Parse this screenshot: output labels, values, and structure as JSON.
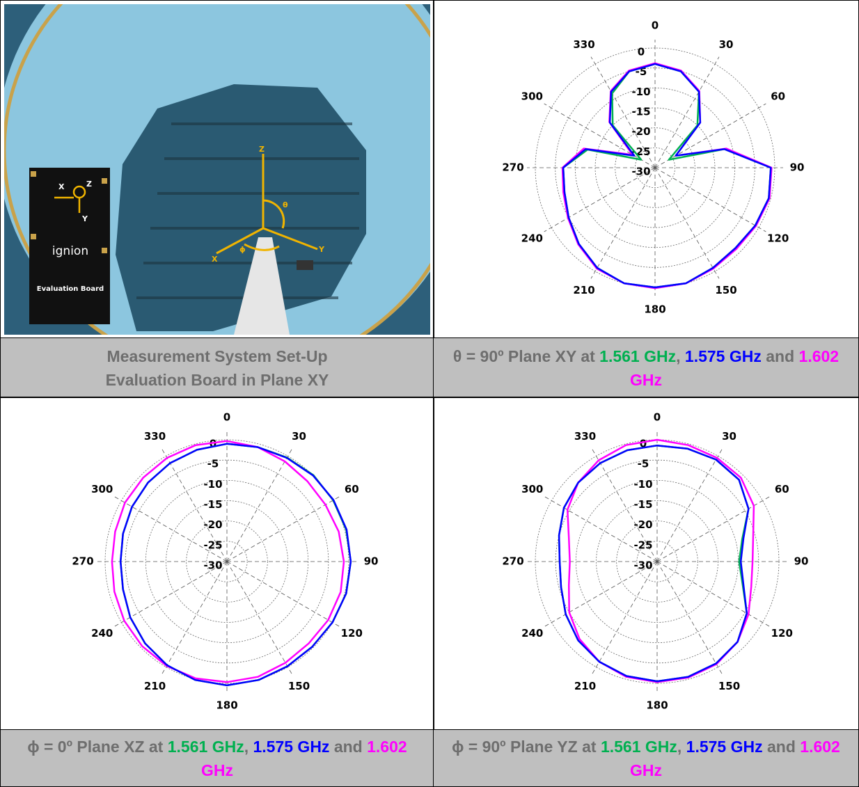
{
  "setup_caption": [
    "Measurement System Set-Up",
    "Evaluation Board in Plane XY"
  ],
  "photo": {
    "brand": "ignion",
    "board_title": "Evaluation Board",
    "board_axes": [
      "X",
      "Z",
      "Y"
    ],
    "chamber_axes": [
      "Z",
      "θ",
      "ϕ",
      "X",
      "Y"
    ]
  },
  "captions": [
    [
      {
        "text": "θ = 90º Plane XY at "
      },
      {
        "text": "1.561 GHz",
        "color": "#00b050"
      },
      {
        "text": ", "
      },
      {
        "text": "1.575 GHz",
        "color": "#0000ff"
      },
      {
        "text": " and "
      },
      {
        "text": "1.602 GHz",
        "color": "#ff00ff"
      }
    ],
    [
      {
        "text": "ϕ = 0º Plane XZ at "
      },
      {
        "text": "1.561 GHz",
        "color": "#00b050"
      },
      {
        "text": ", "
      },
      {
        "text": "1.575 GHz",
        "color": "#0000ff"
      },
      {
        "text": " and "
      },
      {
        "text": "1.602 GHz",
        "color": "#ff00ff"
      }
    ],
    [
      {
        "text": "ϕ = 90º Plane YZ at "
      },
      {
        "text": "1.561 GHz",
        "color": "#00b050"
      },
      {
        "text": ", "
      },
      {
        "text": "1.575 GHz",
        "color": "#0000ff"
      },
      {
        "text": " and "
      },
      {
        "text": "1.602 GHz",
        "color": "#ff00ff"
      }
    ]
  ],
  "chart_data": [
    {
      "type": "polar",
      "xlim": [
        0,
        360
      ],
      "xticks": [
        0,
        30,
        60,
        90,
        120,
        150,
        180,
        210,
        240,
        270,
        300,
        330
      ],
      "ylim": [
        -30,
        0
      ],
      "yticks": [
        0,
        -5,
        -10,
        -15,
        -20,
        -25,
        -30
      ],
      "grid": true,
      "x": [
        0,
        15,
        30,
        45,
        60,
        75,
        90,
        105,
        120,
        135,
        150,
        165,
        180,
        195,
        210,
        225,
        240,
        255,
        270,
        285,
        300,
        315,
        330,
        345
      ],
      "series": [
        {
          "color": "#00b050",
          "values": [
            -4,
            -5,
            -8,
            -15,
            -26,
            -12,
            -1,
            -0.5,
            -1,
            -1.5,
            -1,
            0,
            0,
            0,
            -1,
            -3,
            -5,
            -6.5,
            -7,
            -12.5,
            -26,
            -15,
            -8.5,
            -5
          ]
        },
        {
          "color": "#ff00ff",
          "values": [
            -3.8,
            -4.8,
            -7.8,
            -14,
            -24,
            -11.5,
            -0.8,
            -0.3,
            -0.8,
            -1.2,
            -0.8,
            0,
            0.2,
            0,
            -0.8,
            -2.8,
            -4.8,
            -6.2,
            -6.8,
            -11.5,
            -23.5,
            -13.8,
            -7.8,
            -4.8
          ]
        },
        {
          "color": "#0000ff",
          "values": [
            -4,
            -5,
            -8,
            -14,
            -24,
            -12,
            -1,
            -0.5,
            -1,
            -1.5,
            -1,
            0,
            0,
            0,
            -1,
            -3,
            -5,
            -6.5,
            -7,
            -12,
            -24,
            -14,
            -8,
            -5
          ]
        }
      ]
    },
    {
      "type": "polar",
      "xlim": [
        0,
        360
      ],
      "xticks": [
        0,
        30,
        60,
        90,
        120,
        150,
        180,
        210,
        240,
        270,
        300,
        330
      ],
      "ylim": [
        -30,
        0
      ],
      "yticks": [
        0,
        -5,
        -10,
        -15,
        -20,
        -25,
        -30
      ],
      "grid": true,
      "x": [
        0,
        15,
        30,
        45,
        60,
        75,
        90,
        105,
        120,
        135,
        150,
        165,
        180,
        195,
        210,
        225,
        240,
        255,
        270,
        285,
        300,
        315,
        330,
        345
      ],
      "series": [
        {
          "color": "#00b050",
          "values": [
            -1,
            -0.8,
            -0.4,
            0.1,
            0.2,
            0.4,
            0.5,
            0.4,
            0,
            -0.3,
            -0.2,
            0.2,
            0.5,
            0.2,
            -0.5,
            -1.5,
            -2.5,
            -3.5,
            -3.8,
            -3.5,
            -3,
            -2.5,
            -2,
            -1.5
          ]
        },
        {
          "color": "#ff00ff",
          "values": [
            -0.3,
            -0.8,
            -1.5,
            -2,
            -2,
            -1.5,
            -1.2,
            -1,
            -1.2,
            -1.5,
            -1.2,
            -0.6,
            -0.3,
            -0.2,
            -0.3,
            -0.5,
            -0.8,
            -1.3,
            -1.7,
            -1.5,
            -1,
            -0.8,
            -0.5,
            -0.3
          ]
        },
        {
          "color": "#0000ff",
          "values": [
            -1,
            -0.8,
            -0.5,
            0,
            0.3,
            0.5,
            0.5,
            0.4,
            0,
            -0.3,
            -0.2,
            0.2,
            0.5,
            0.2,
            -0.5,
            -1.5,
            -2.5,
            -3.5,
            -3.8,
            -3.5,
            -3,
            -2.5,
            -2,
            -1.5
          ]
        }
      ]
    },
    {
      "type": "polar",
      "xlim": [
        0,
        360
      ],
      "xticks": [
        0,
        30,
        60,
        90,
        120,
        150,
        180,
        210,
        240,
        270,
        300,
        330
      ],
      "ylim": [
        -30,
        0
      ],
      "yticks": [
        0,
        -5,
        -10,
        -15,
        -20,
        -25,
        -30
      ],
      "grid": true,
      "x": [
        0,
        15,
        30,
        45,
        60,
        75,
        90,
        105,
        120,
        135,
        150,
        165,
        180,
        195,
        210,
        225,
        240,
        255,
        270,
        285,
        300,
        315,
        330,
        345
      ],
      "series": [
        {
          "color": "#00b050",
          "values": [
            -1.4,
            -1.2,
            -1,
            -1.5,
            -4,
            -8.3,
            -9.8,
            -8.2,
            -4.5,
            -2,
            -1,
            -0.6,
            -0.5,
            -0.8,
            -1.5,
            -2.5,
            -4,
            -5.5,
            -6,
            -5,
            -3.5,
            -2.5,
            -2,
            -1.6
          ]
        },
        {
          "color": "#ff00ff",
          "values": [
            0,
            -0.3,
            -0.5,
            -0.8,
            -2.5,
            -5.5,
            -6.5,
            -6,
            -4,
            -2,
            -0.8,
            -0.4,
            -0.3,
            -0.6,
            -1.5,
            -3,
            -5,
            -7.5,
            -8.5,
            -7.5,
            -4.5,
            -2.5,
            -1.2,
            -0.3
          ]
        },
        {
          "color": "#0000ff",
          "values": [
            -1.4,
            -1.2,
            -1,
            -1.5,
            -4,
            -8,
            -9.4,
            -8,
            -4.5,
            -2,
            -1,
            -0.6,
            -0.5,
            -0.8,
            -1.5,
            -2.5,
            -4,
            -5.5,
            -6,
            -5,
            -3.5,
            -2.5,
            -2,
            -1.6
          ]
        }
      ]
    }
  ]
}
